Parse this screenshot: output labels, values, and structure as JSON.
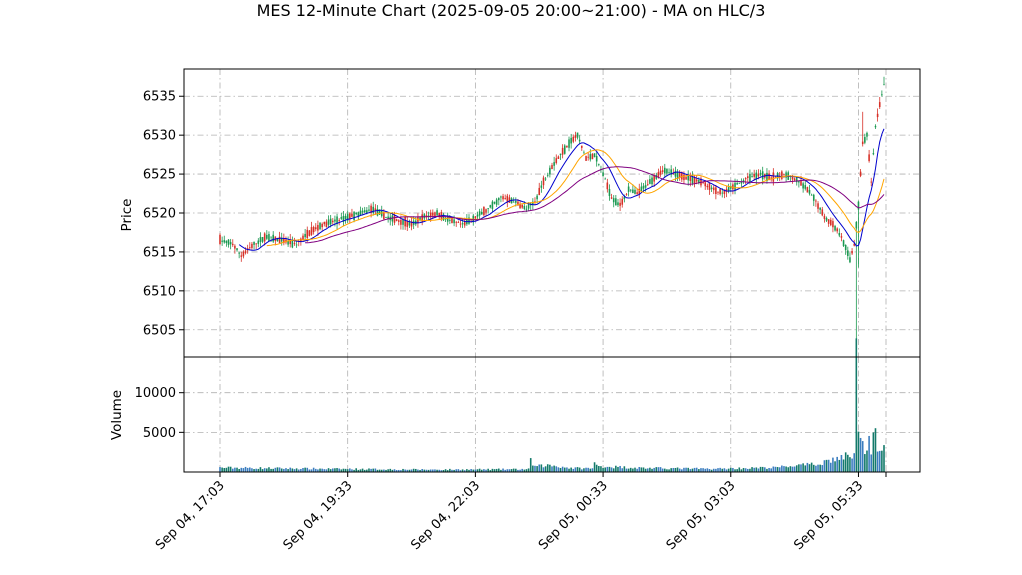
{
  "chart_data": {
    "type": "candlestick",
    "title": "MES 12-Minute Chart (2025-09-05 20:00~21:00) - MA on HLC/3",
    "ylabel": "Price",
    "volume_label": "Volume",
    "ylim": [
      6501.5,
      6538.5
    ],
    "volume_ylim": [
      0,
      14500
    ],
    "yticks": [
      6505,
      6510,
      6515,
      6520,
      6525,
      6530,
      6535
    ],
    "volume_yticks": [
      5000,
      10000
    ],
    "xticks": [
      "Sep 04, 17:03",
      "Sep 04, 19:33",
      "Sep 04, 22:03",
      "Sep 05, 00:33",
      "Sep 05, 03:03",
      "Sep 05, 05:33"
    ],
    "grid": true,
    "colors": {
      "up": "#1a9850",
      "down": "#d73027",
      "volume_up": "#137a6a",
      "volume_down": "#3b7dbf",
      "ma_fast": "#0000cd",
      "ma_mid": "#ffa500",
      "ma_slow": "#800080"
    },
    "price_anchors": [
      [
        0,
        6516.5
      ],
      [
        6,
        6516
      ],
      [
        10,
        6514.5
      ],
      [
        16,
        6516
      ],
      [
        22,
        6517
      ],
      [
        28,
        6516.5
      ],
      [
        36,
        6516
      ],
      [
        42,
        6517.5
      ],
      [
        48,
        6518.5
      ],
      [
        54,
        6519
      ],
      [
        60,
        6519.5
      ],
      [
        66,
        6520
      ],
      [
        72,
        6520.5
      ],
      [
        78,
        6519.5
      ],
      [
        84,
        6519
      ],
      [
        90,
        6518.5
      ],
      [
        96,
        6519.5
      ],
      [
        102,
        6520
      ],
      [
        108,
        6519
      ],
      [
        114,
        6518.5
      ],
      [
        120,
        6519.5
      ],
      [
        126,
        6520.5
      ],
      [
        132,
        6522
      ],
      [
        138,
        6521.5
      ],
      [
        144,
        6520.5
      ],
      [
        148,
        6521.5
      ],
      [
        152,
        6524
      ],
      [
        156,
        6526
      ],
      [
        160,
        6527.5
      ],
      [
        164,
        6529
      ],
      [
        168,
        6530
      ],
      [
        172,
        6527
      ],
      [
        176,
        6527.5
      ],
      [
        180,
        6525
      ],
      [
        184,
        6522
      ],
      [
        188,
        6521
      ],
      [
        192,
        6523
      ],
      [
        196,
        6522.5
      ],
      [
        202,
        6524
      ],
      [
        208,
        6525.5
      ],
      [
        214,
        6525
      ],
      [
        220,
        6524.5
      ],
      [
        226,
        6524
      ],
      [
        232,
        6523
      ],
      [
        236,
        6522.5
      ],
      [
        242,
        6523.5
      ],
      [
        248,
        6524.5
      ],
      [
        254,
        6525
      ],
      [
        260,
        6524.5
      ],
      [
        266,
        6525
      ],
      [
        272,
        6524
      ],
      [
        276,
        6523
      ],
      [
        280,
        6521.5
      ],
      [
        284,
        6519.5
      ],
      [
        288,
        6518.5
      ],
      [
        292,
        6517
      ],
      [
        294,
        6515.5
      ],
      [
        296,
        6514
      ],
      [
        298,
        6516
      ],
      [
        300,
        6521
      ],
      [
        302,
        6529
      ],
      [
        304,
        6530
      ],
      [
        306,
        6524
      ],
      [
        308,
        6531
      ],
      [
        310,
        6534
      ],
      [
        312,
        6536.5
      ]
    ],
    "volume_anchors": [
      [
        0,
        550
      ],
      [
        50,
        400
      ],
      [
        100,
        300
      ],
      [
        145,
        350
      ],
      [
        146,
        1400
      ],
      [
        147,
        1000
      ],
      [
        148,
        700
      ],
      [
        155,
        850
      ],
      [
        165,
        500
      ],
      [
        175,
        450
      ],
      [
        176,
        1100
      ],
      [
        177,
        800
      ],
      [
        180,
        700
      ],
      [
        200,
        500
      ],
      [
        230,
        400
      ],
      [
        260,
        550
      ],
      [
        270,
        800
      ],
      [
        280,
        950
      ],
      [
        285,
        1400
      ],
      [
        290,
        1700
      ],
      [
        295,
        2000
      ],
      [
        298,
        2400
      ],
      [
        299,
        13600
      ],
      [
        300,
        6500
      ],
      [
        301,
        5000
      ],
      [
        302,
        5500
      ],
      [
        303,
        3200
      ],
      [
        304,
        2800
      ],
      [
        305,
        4000
      ],
      [
        306,
        3000
      ],
      [
        307,
        3900
      ],
      [
        308,
        4300
      ],
      [
        309,
        2400
      ],
      [
        310,
        3800
      ],
      [
        312,
        3600
      ]
    ],
    "special_wicks": [
      {
        "bar": 299,
        "low": 6503
      },
      {
        "bar": 300,
        "low": 6513
      },
      {
        "bar": 302,
        "high": 6533
      },
      {
        "bar": 312,
        "high": 6537.5
      }
    ]
  }
}
